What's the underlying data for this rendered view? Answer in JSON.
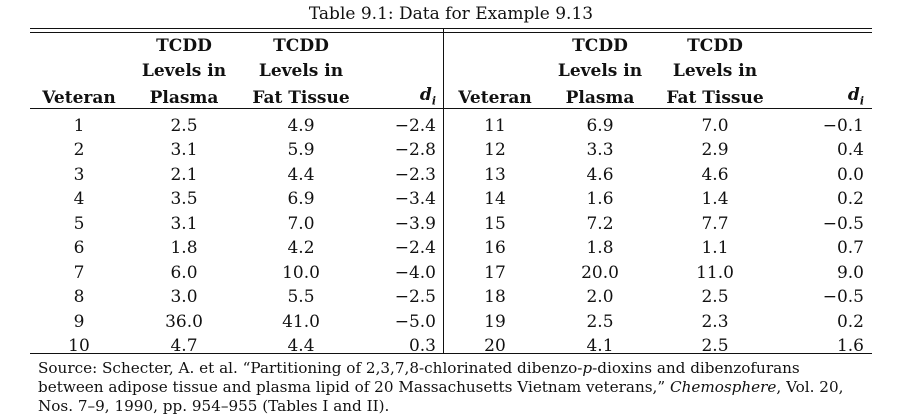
{
  "caption": "Table 9.1: Data for Example 9.13",
  "headers": {
    "line1": [
      "",
      "TCDD",
      "TCDD",
      "",
      "",
      "TCDD",
      "TCDD",
      ""
    ],
    "line2": [
      "",
      "Levels in",
      "Levels in",
      "",
      "",
      "Levels in",
      "Levels in",
      ""
    ],
    "line3": [
      "Veteran",
      "Plasma",
      "Fat Tissue",
      "d",
      "Veteran",
      "Plasma",
      "Fat Tissue",
      "d"
    ],
    "di_subscript": "i"
  },
  "rows": [
    {
      "left": {
        "veteran": "1",
        "plasma": "2.5",
        "fat": "4.9",
        "d": "−2.4"
      },
      "right": {
        "veteran": "11",
        "plasma": "6.9",
        "fat": "7.0",
        "d": "−0.1"
      }
    },
    {
      "left": {
        "veteran": "2",
        "plasma": "3.1",
        "fat": "5.9",
        "d": "−2.8"
      },
      "right": {
        "veteran": "12",
        "plasma": "3.3",
        "fat": "2.9",
        "d": "0.4"
      }
    },
    {
      "left": {
        "veteran": "3",
        "plasma": "2.1",
        "fat": "4.4",
        "d": "−2.3"
      },
      "right": {
        "veteran": "13",
        "plasma": "4.6",
        "fat": "4.6",
        "d": "0.0"
      }
    },
    {
      "left": {
        "veteran": "4",
        "plasma": "3.5",
        "fat": "6.9",
        "d": "−3.4"
      },
      "right": {
        "veteran": "14",
        "plasma": "1.6",
        "fat": "1.4",
        "d": "0.2"
      }
    },
    {
      "left": {
        "veteran": "5",
        "plasma": "3.1",
        "fat": "7.0",
        "d": "−3.9"
      },
      "right": {
        "veteran": "15",
        "plasma": "7.2",
        "fat": "7.7",
        "d": "−0.5"
      }
    },
    {
      "left": {
        "veteran": "6",
        "plasma": "1.8",
        "fat": "4.2",
        "d": "−2.4"
      },
      "right": {
        "veteran": "16",
        "plasma": "1.8",
        "fat": "1.1",
        "d": "0.7"
      }
    },
    {
      "left": {
        "veteran": "7",
        "plasma": "6.0",
        "fat": "10.0",
        "d": "−4.0"
      },
      "right": {
        "veteran": "17",
        "plasma": "20.0",
        "fat": "11.0",
        "d": "9.0"
      }
    },
    {
      "left": {
        "veteran": "8",
        "plasma": "3.0",
        "fat": "5.5",
        "d": "−2.5"
      },
      "right": {
        "veteran": "18",
        "plasma": "2.0",
        "fat": "2.5",
        "d": "−0.5"
      }
    },
    {
      "left": {
        "veteran": "9",
        "plasma": "36.0",
        "fat": "41.0",
        "d": "−5.0"
      },
      "right": {
        "veteran": "19",
        "plasma": "2.5",
        "fat": "2.3",
        "d": "0.2"
      }
    },
    {
      "left": {
        "veteran": "10",
        "plasma": "4.7",
        "fat": "4.4",
        "d": "0.3"
      },
      "right": {
        "veteran": "20",
        "plasma": "4.1",
        "fat": "2.5",
        "d": "1.6"
      }
    }
  ],
  "source": {
    "part1": "Source: Schecter, A. et al. “Partitioning of 2,3,7,8-chlorinated dibenzo-",
    "p_italic": "p",
    "part2": "-dioxins and dibenzofurans between adipose tissue and plasma lipid of 20 Massachusetts Vietnam veterans,” ",
    "journal": "Chemosphere",
    "part3": ", Vol. 20, Nos. 7–9, 1990, pp. 954–955 (Tables I and II)."
  }
}
